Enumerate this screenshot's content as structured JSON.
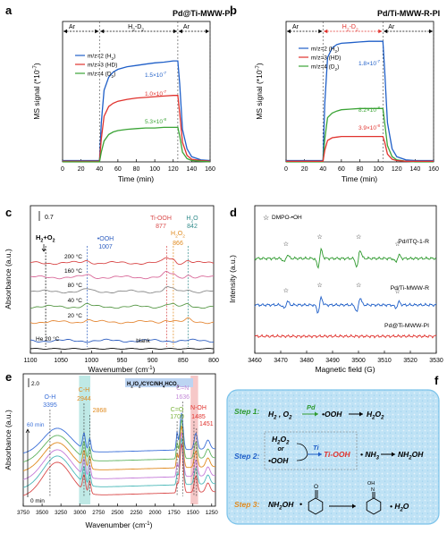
{
  "panels": {
    "a": {
      "letter": "a",
      "title": "Pd@Ti-MWW-PI",
      "ylabel": "MS signal (*10",
      "ylabel_exp": "-7",
      "ylabel_end": ")",
      "xlabel": "Time (min)",
      "gas_labels": [
        "Ar",
        "H",
        "2",
        "-D",
        "2",
        "Ar"
      ],
      "legend": [
        {
          "label": "m/z=2 (H",
          "sub": "2",
          "end": ")",
          "color": "#1f5fc8"
        },
        {
          "label": "m/z=3 (HD)",
          "sub": "",
          "end": "",
          "color": "#e0322d"
        },
        {
          "label": "m/z=4 (D",
          "sub": "2",
          "end": ")",
          "color": "#3aa335"
        }
      ],
      "annotations": [
        {
          "text": "1.5×10",
          "exp": "-7",
          "color": "#1f5fc8"
        },
        {
          "text": "1.0×10",
          "exp": "-7",
          "color": "#e0322d"
        },
        {
          "text": "5.3×10",
          "exp": "-8",
          "color": "#3aa335"
        }
      ]
    },
    "b": {
      "letter": "b",
      "title": "Pd/Ti-MWW-R-PI",
      "ylabel": "MS signal (*10",
      "ylabel_exp": "-7",
      "ylabel_end": ")",
      "xlabel": "Time (min)",
      "gas_labels": [
        "Ar",
        "H",
        "2",
        "-D",
        "2",
        "Ar"
      ],
      "legend": [
        {
          "label": "m/z=2 (H",
          "sub": "2",
          "end": ")",
          "color": "#1f5fc8"
        },
        {
          "label": "m/z=3 (HD)",
          "sub": "",
          "end": "",
          "color": "#e0322d"
        },
        {
          "label": "m/z=4 (D",
          "sub": "2",
          "end": ")",
          "color": "#3aa335"
        }
      ],
      "annotations": [
        {
          "text": "1.8×10",
          "exp": "-7",
          "color": "#1f5fc8"
        },
        {
          "text": "8.2×10",
          "exp": "-8",
          "color": "#3aa335"
        },
        {
          "text": "3.9×10",
          "exp": "-8",
          "color": "#e0322d"
        }
      ]
    },
    "c": {
      "letter": "c",
      "ylabel": "Absorbance (a.u.)",
      "xlabel": "Wavenumber (cm",
      "xlabel_exp": "-1",
      "xlabel_end": ")",
      "scale": "0.7",
      "gas": "H",
      "gas_sub": "2",
      "gas_mid": "+O",
      "gas_sub2": "2",
      "ooh_label": "•OOH",
      "ooh_value": "1007",
      "tiooh_label": "Ti-OOH",
      "tiooh_value": "877",
      "h2o2_label": "H",
      "h2o2_value": "866",
      "h2o_label": "H",
      "h2o_value": "842",
      "trace_labels": [
        "200 °C",
        "160 °C",
        "80 °C",
        "40 °C",
        "20 °C"
      ],
      "he_label": "He   20 °C",
      "blank_label": "blank"
    },
    "d": {
      "letter": "d",
      "ylabel": "Intensity (a.u.)",
      "xlabel": "Magnetic field (G)",
      "legend": "DMPO-•OH",
      "trace_labels": [
        "Pd/ITQ-1-R",
        "Pd/Ti-MWW-R",
        "Pd@Ti-MWW-PI"
      ]
    },
    "e": {
      "letter": "e",
      "ylabel": "Absorbance (a.u.)",
      "xlabel": "Wavenumber (cm",
      "xlabel_exp": "-1",
      "xlabel_end": ")",
      "scale": "2.0",
      "box_label": "H",
      "band_labels": [
        {
          "group": "O-H",
          "value": "3395",
          "color": "#3a6fd8"
        },
        {
          "group": "C-H",
          "value": "2944",
          "color": "#e08a1e"
        },
        {
          "group": "",
          "value": "2868",
          "color": "#e08a1e"
        },
        {
          "group": "C=N",
          "value": "1636",
          "color": "#c48ad8"
        },
        {
          "group": "C=O",
          "value": "1709",
          "color": "#7ab33a"
        },
        {
          "group": "N-OH",
          "value": "1485",
          "color": "#e0322d"
        },
        {
          "group": "",
          "value": "1451",
          "color": "#e0322d"
        }
      ],
      "time_top": "60 min",
      "time_bottom": "0 min"
    },
    "f": {
      "letter": "f",
      "steps": [
        {
          "label": "Step 1:",
          "color": "#2f9a2f"
        },
        {
          "label": "Step 2:",
          "color": "#1f5fc8"
        },
        {
          "label": "Step 3:",
          "color": "#e08a1e"
        }
      ],
      "pd": "Pd",
      "ti": "Ti",
      "tiooh": "Ti-OOH",
      "or": "or",
      "nh3": "• NH",
      "nh2oh": "NH",
      "ooh": "•OOH",
      "h2o2": "H",
      "nh2oh_full": "NH",
      "oh_label": "OH",
      "h2o": "• H"
    }
  },
  "chart_data": [
    {
      "panel": "a",
      "type": "line",
      "xlabel": "Time (min)",
      "ylabel": "MS signal (*10^-7)",
      "xlim": [
        0,
        160
      ],
      "xticks": [
        0,
        20,
        40,
        60,
        80,
        100,
        120,
        140,
        160
      ],
      "series": [
        {
          "name": "m/z=2 (H2)",
          "color": "#1f5fc8",
          "x": [
            0,
            40,
            42,
            45,
            50,
            55,
            60,
            70,
            80,
            90,
            100,
            110,
            120,
            125,
            127,
            130,
            135,
            140,
            150,
            160
          ],
          "y": [
            0.02,
            0.02,
            0.6,
            1.1,
            1.3,
            1.38,
            1.42,
            1.46,
            1.48,
            1.5,
            1.52,
            1.53,
            1.55,
            1.55,
            1.2,
            0.5,
            0.2,
            0.08,
            0.03,
            0.02
          ]
        },
        {
          "name": "m/z=3 (HD)",
          "color": "#e0322d",
          "x": [
            0,
            40,
            42,
            45,
            50,
            55,
            60,
            70,
            80,
            90,
            100,
            110,
            120,
            125,
            127,
            130,
            135,
            140,
            150,
            160
          ],
          "y": [
            0.01,
            0.01,
            0.35,
            0.7,
            0.85,
            0.9,
            0.93,
            0.96,
            0.98,
            0.99,
            1.0,
            1.01,
            1.02,
            1.02,
            0.75,
            0.3,
            0.1,
            0.04,
            0.02,
            0.01
          ]
        },
        {
          "name": "m/z=4 (D2)",
          "color": "#3aa335",
          "x": [
            0,
            40,
            42,
            45,
            50,
            55,
            60,
            70,
            80,
            90,
            100,
            110,
            120,
            125,
            127,
            130,
            135,
            140,
            150,
            160
          ],
          "y": [
            0.0,
            0.0,
            0.15,
            0.32,
            0.42,
            0.46,
            0.48,
            0.5,
            0.51,
            0.52,
            0.52,
            0.53,
            0.53,
            0.53,
            0.4,
            0.15,
            0.05,
            0.02,
            0.01,
            0.0
          ]
        }
      ]
    },
    {
      "panel": "b",
      "type": "line",
      "xlabel": "Time (min)",
      "ylabel": "MS signal (*10^-7)",
      "xlim": [
        0,
        160
      ],
      "xticks": [
        0,
        20,
        40,
        60,
        80,
        100,
        120,
        140,
        160
      ],
      "series": [
        {
          "name": "m/z=2 (H2)",
          "color": "#1f5fc8",
          "x": [
            0,
            40,
            42,
            45,
            50,
            55,
            60,
            70,
            80,
            90,
            100,
            105,
            107,
            110,
            115,
            120,
            130,
            140,
            160
          ],
          "y": [
            0.02,
            0.02,
            0.9,
            1.6,
            1.75,
            1.8,
            1.82,
            1.83,
            1.84,
            1.85,
            1.85,
            1.85,
            1.4,
            0.6,
            0.2,
            0.08,
            0.03,
            0.02,
            0.02
          ]
        },
        {
          "name": "m/z=4 (D2)",
          "color": "#3aa335",
          "x": [
            0,
            40,
            42,
            45,
            50,
            55,
            60,
            70,
            80,
            90,
            100,
            105,
            107,
            110,
            115,
            120,
            130,
            140,
            160
          ],
          "y": [
            0.0,
            0.0,
            0.35,
            0.68,
            0.75,
            0.78,
            0.8,
            0.81,
            0.82,
            0.82,
            0.82,
            0.82,
            0.6,
            0.25,
            0.08,
            0.03,
            0.01,
            0.0,
            0.0
          ]
        },
        {
          "name": "m/z=3 (HD)",
          "color": "#e0322d",
          "x": [
            0,
            40,
            42,
            45,
            50,
            55,
            60,
            70,
            80,
            90,
            100,
            105,
            107,
            110,
            115,
            120,
            130,
            140,
            160
          ],
          "y": [
            0.01,
            0.01,
            0.18,
            0.33,
            0.37,
            0.38,
            0.39,
            0.39,
            0.39,
            0.39,
            0.39,
            0.39,
            0.3,
            0.12,
            0.04,
            0.02,
            0.01,
            0.01,
            0.01
          ]
        }
      ]
    },
    {
      "panel": "c",
      "type": "line",
      "xlabel": "Wavenumber (cm-1)",
      "ylabel": "Absorbance (a.u.)",
      "xlim": [
        1100,
        800
      ],
      "xticks": [
        1100,
        1050,
        1000,
        950,
        900,
        850,
        800
      ],
      "series": [
        {
          "name": "200 °C",
          "color": "#d94a4a"
        },
        {
          "name": "160 °C",
          "color": "#d96a9a"
        },
        {
          "name": "80 °C",
          "color": "#8a8a8a"
        },
        {
          "name": "40 °C",
          "color": "#5a9a4a"
        },
        {
          "name": "20 °C",
          "color": "#e58a3a"
        },
        {
          "name": "He 20 °C",
          "color": "#2f5fc0"
        },
        {
          "name": "blank",
          "color": "#000000"
        }
      ]
    },
    {
      "panel": "d",
      "type": "line",
      "xlabel": "Magnetic field (G)",
      "ylabel": "Intensity (a.u.)",
      "xlim": [
        3460,
        3530
      ],
      "xticks": [
        3460,
        3470,
        3480,
        3490,
        3500,
        3510,
        3520,
        3530
      ],
      "series": [
        {
          "name": "Pd/ITQ-1-R",
          "color": "#2f9a2f"
        },
        {
          "name": "Pd/Ti-MWW-R",
          "color": "#1f5fc8"
        },
        {
          "name": "Pd@Ti-MWW-PI",
          "color": "#e0322d"
        }
      ]
    },
    {
      "panel": "e",
      "type": "line",
      "xlabel": "Wavenumber (cm-1)",
      "ylabel": "Absorbance (a.u.)",
      "xlim": [
        3750,
        1200
      ],
      "xticks": [
        3750,
        3500,
        3250,
        3000,
        2750,
        2500,
        2250,
        2000,
        1750,
        1500,
        1250
      ]
    }
  ],
  "colors": {
    "blue": "#1f5fc8",
    "red": "#e0322d",
    "green": "#3aa335",
    "orange": "#e08a1e",
    "frame": "#7cc3ea",
    "panel_bg": "#cfe9f7"
  }
}
